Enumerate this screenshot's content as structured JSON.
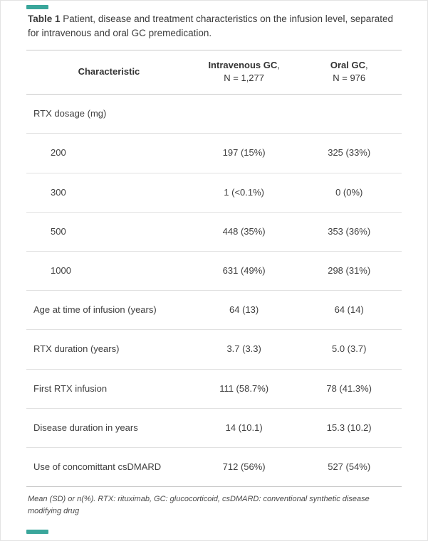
{
  "accent_color": "#3aa69b",
  "caption": {
    "label": "Table 1",
    "text": " Patient, disease and treatment characteristics on the infusion level, separated for intravenous and oral GC premedication."
  },
  "table": {
    "header": {
      "characteristic": "Characteristic",
      "col_iv_name": "Intravenous GC",
      "col_iv_comma": ",",
      "col_iv_sub": "N = 1,277",
      "col_oral_name": "Oral GC",
      "col_oral_comma": ",",
      "col_oral_sub": "N = 976"
    },
    "rows": [
      {
        "label": "RTX dosage (mg)",
        "iv": "",
        "oral": ""
      },
      {
        "label": "200",
        "iv": "197 (15%)",
        "oral": "325 (33%)"
      },
      {
        "label": "300",
        "iv": "1 (<0.1%)",
        "oral": "0 (0%)"
      },
      {
        "label": "500",
        "iv": "448 (35%)",
        "oral": "353 (36%)"
      },
      {
        "label": "1000",
        "iv": "631 (49%)",
        "oral": "298 (31%)"
      },
      {
        "label": "Age at time of infusion (years)",
        "iv": "64 (13)",
        "oral": "64 (14)"
      },
      {
        "label": "RTX duration (years)",
        "iv": "3.7 (3.3)",
        "oral": "5.0 (3.7)"
      },
      {
        "label": "First RTX infusion",
        "iv": "111 (58.7%)",
        "oral": "78 (41.3%)"
      },
      {
        "label": "Disease duration in years",
        "iv": "14 (10.1)",
        "oral": "15.3 (10.2)"
      },
      {
        "label": "Use of concomittant csDMARD",
        "iv": "712 (56%)",
        "oral": "527 (54%)"
      }
    ]
  },
  "footnote": "Mean (SD) or n(%). RTX: rituximab, GC: glucocorticoid, csDMARD: conventional synthetic disease modifying drug"
}
